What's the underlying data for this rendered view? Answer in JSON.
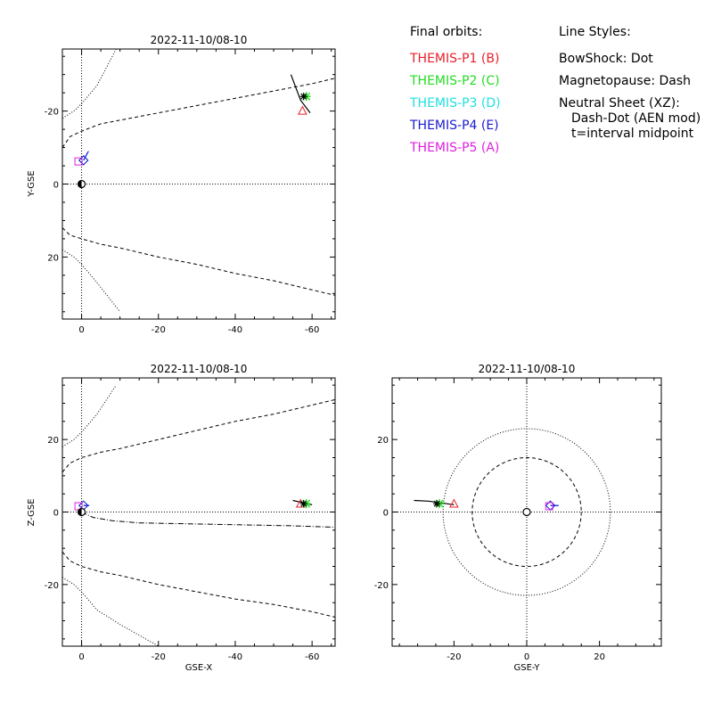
{
  "legend": {
    "orbits_title": "Final orbits:",
    "probes": [
      {
        "label": "THEMIS-P1 (B)",
        "color": "#e8202a"
      },
      {
        "label": "THEMIS-P2 (C)",
        "color": "#22dd22"
      },
      {
        "label": "THEMIS-P3 (D)",
        "color": "#1fe0e0"
      },
      {
        "label": "THEMIS-P4 (E)",
        "color": "#1a1ad0"
      },
      {
        "label": "THEMIS-P5 (A)",
        "color": "#e020e0"
      }
    ],
    "styles_title": "Line Styles:",
    "styles": [
      "BowShock: Dot",
      "Magnetopause: Dash",
      "Neutral Sheet (XZ):",
      "Dash-Dot (AEN mod)",
      "t=interval midpoint"
    ]
  },
  "chart_data": [
    {
      "type": "line",
      "title": "2022-11-10/08-10",
      "xlabel": "",
      "ylabel": "Y-GSE",
      "xlim": [
        5,
        -66
      ],
      "ylim": [
        37,
        -37
      ],
      "xticks": [
        0,
        -20,
        -40,
        -60
      ],
      "xticklabels": [
        "0",
        "-20",
        "-40",
        "-60"
      ],
      "yticks": [
        -20,
        0,
        20
      ],
      "yticklabels": [
        "-20",
        "0",
        "20"
      ],
      "grid": "dotted zero lines",
      "series": [
        {
          "style": "bowshock",
          "x": [
            -9,
            -4,
            0,
            2,
            5
          ],
          "y": [
            -37,
            -27,
            -22,
            -20,
            -18
          ]
        },
        {
          "style": "bowshock",
          "x": [
            5,
            2,
            0,
            -4,
            -10
          ],
          "y": [
            18,
            20,
            22,
            27,
            35
          ]
        },
        {
          "style": "magnetopause",
          "x": [
            5,
            3,
            0,
            -5,
            -10,
            -20,
            -30,
            -40,
            -50,
            -60,
            -66
          ],
          "y": [
            -10,
            -13,
            -14.5,
            -16.5,
            -17.5,
            -19.5,
            -21.5,
            -23.5,
            -25.5,
            -27.5,
            -29
          ]
        },
        {
          "style": "magnetopause",
          "x": [
            5,
            3,
            0,
            -5,
            -10,
            -20,
            -30,
            -40,
            -50,
            -60,
            -66
          ],
          "y": [
            12,
            14,
            15,
            16.5,
            17.5,
            20,
            22,
            24.5,
            26.5,
            29,
            30.5
          ]
        },
        {
          "name": "THEMIS-P1 (B)",
          "orbit": {
            "x": [
              -54.5,
              -57,
              -59.5
            ],
            "y": [
              -30,
              -23,
              -19.5
            ]
          },
          "end": [
            -57.5,
            -20
          ],
          "symbol": "triangle"
        },
        {
          "name": "THEMIS-P2 (C)",
          "end": [
            -58.5,
            -24
          ],
          "symbol": "asterisk"
        },
        {
          "name": "THEMIS-P3 (D)",
          "orbit": {
            "x": [
              -0.5,
              -1.5
            ],
            "y": [
              -6.5,
              -8.5
            ]
          },
          "end": [
            -0.5,
            -6.5
          ],
          "symbol": "diamond"
        },
        {
          "name": "THEMIS-P4 (E)",
          "orbit": {
            "x": [
              -0.5,
              -1.8
            ],
            "y": [
              -6.5,
              -9
            ]
          },
          "end": [
            -0.5,
            -6.5
          ],
          "symbol": "diamond"
        },
        {
          "name": "THEMIS-P5 (A)",
          "end": [
            0.8,
            -6.2
          ],
          "symbol": "square"
        }
      ]
    },
    {
      "type": "line",
      "title": "2022-11-10/08-10",
      "xlabel": "GSE-X",
      "ylabel": "Z-GSE",
      "xlim": [
        5,
        -66
      ],
      "ylim": [
        -37,
        37
      ],
      "xticks": [
        0,
        -20,
        -40,
        -60
      ],
      "xticklabels": [
        "0",
        "-20",
        "-40",
        "-60"
      ],
      "yticks": [
        20,
        0,
        -20
      ],
      "yticklabels": [
        "20",
        "0",
        "-20"
      ],
      "grid": "dotted zero lines",
      "series": [
        {
          "style": "bowshock",
          "x": [
            5,
            2,
            0,
            -4,
            -9
          ],
          "y": [
            18,
            20,
            22,
            27,
            35
          ]
        },
        {
          "style": "bowshock",
          "x": [
            5,
            2,
            0,
            -4,
            -10,
            -20
          ],
          "y": [
            -18,
            -20,
            -22,
            -27,
            -31,
            -37
          ]
        },
        {
          "style": "magnetopause",
          "x": [
            5,
            3,
            0,
            -5,
            -10,
            -20,
            -30,
            -40,
            -50,
            -60,
            -66
          ],
          "y": [
            11,
            13.5,
            15,
            16.5,
            17.5,
            20,
            22.5,
            25,
            27,
            29.5,
            31
          ]
        },
        {
          "style": "magnetopause",
          "x": [
            5,
            3,
            0,
            -5,
            -10,
            -20,
            -30,
            -40,
            -50,
            -60,
            -66
          ],
          "y": [
            -11,
            -13.5,
            -15,
            -16.5,
            -17.5,
            -20,
            -22,
            -24,
            -25.5,
            -27.5,
            -29
          ]
        },
        {
          "style": "neutral-sheet",
          "x": [
            0,
            -3,
            -8,
            -15,
            -25,
            -35,
            -45,
            -55,
            -66
          ],
          "y": [
            0,
            -1.5,
            -2.4,
            -3,
            -3.2,
            -3.4,
            -3.6,
            -3.8,
            -4.2
          ]
        },
        {
          "name": "THEMIS-P1 (B)",
          "orbit": {
            "x": [
              -55,
              -57.5,
              -60
            ],
            "y": [
              3.2,
              2.6,
              2
            ]
          },
          "end": [
            -57,
            2.2
          ],
          "symbol": "triangle"
        },
        {
          "name": "THEMIS-P2 (C)",
          "end": [
            -58.5,
            2.3
          ],
          "symbol": "asterisk"
        },
        {
          "name": "THEMIS-P3 (D)",
          "orbit": {
            "x": [
              -0.5,
              -1.8
            ],
            "y": [
              1.8,
              1.8
            ]
          },
          "end": [
            -0.5,
            1.8
          ],
          "symbol": "diamond"
        },
        {
          "name": "THEMIS-P4 (E)",
          "orbit": {
            "x": [
              -0.5,
              -2
            ],
            "y": [
              1.8,
              1.8
            ]
          },
          "end": [
            -0.5,
            1.8
          ],
          "symbol": "diamond"
        },
        {
          "name": "THEMIS-P5 (A)",
          "end": [
            0.8,
            1.6
          ],
          "symbol": "square"
        }
      ]
    },
    {
      "type": "line",
      "title": "2022-11-10/08-10",
      "xlabel": "GSE-Y",
      "ylabel": "",
      "xlim": [
        -37,
        37
      ],
      "ylim": [
        -37,
        37
      ],
      "xticks": [
        -20,
        0,
        20
      ],
      "xticklabels": [
        "-20",
        "0",
        "20"
      ],
      "yticks": [
        20,
        0,
        -20
      ],
      "yticklabels": [
        "20",
        "0",
        "-20"
      ],
      "grid": "dotted zero lines",
      "series": [
        {
          "style": "bowshock-circle",
          "radius": 23
        },
        {
          "style": "magnetopause-circle",
          "radius": 15
        },
        {
          "name": "THEMIS-P1 (B)",
          "orbit": {
            "x": [
              -31,
              -27,
              -24,
              -20
            ],
            "y": [
              3.2,
              3,
              2.6,
              2
            ]
          },
          "end": [
            -20,
            2.2
          ],
          "symbol": "triangle"
        },
        {
          "name": "THEMIS-P2 (C)",
          "end": [
            -24,
            2.3
          ],
          "symbol": "asterisk"
        },
        {
          "name": "THEMIS-P3 (D)",
          "orbit": {
            "x": [
              6.5,
              8.5
            ],
            "y": [
              1.8,
              1.8
            ]
          },
          "end": [
            6.5,
            1.8
          ],
          "symbol": "diamond"
        },
        {
          "name": "THEMIS-P4 (E)",
          "orbit": {
            "x": [
              6.5,
              8.8
            ],
            "y": [
              1.8,
              1.8
            ]
          },
          "end": [
            6.5,
            1.8
          ],
          "symbol": "diamond"
        },
        {
          "name": "THEMIS-P5 (A)",
          "end": [
            6.2,
            1.6
          ],
          "symbol": "square"
        }
      ]
    }
  ]
}
